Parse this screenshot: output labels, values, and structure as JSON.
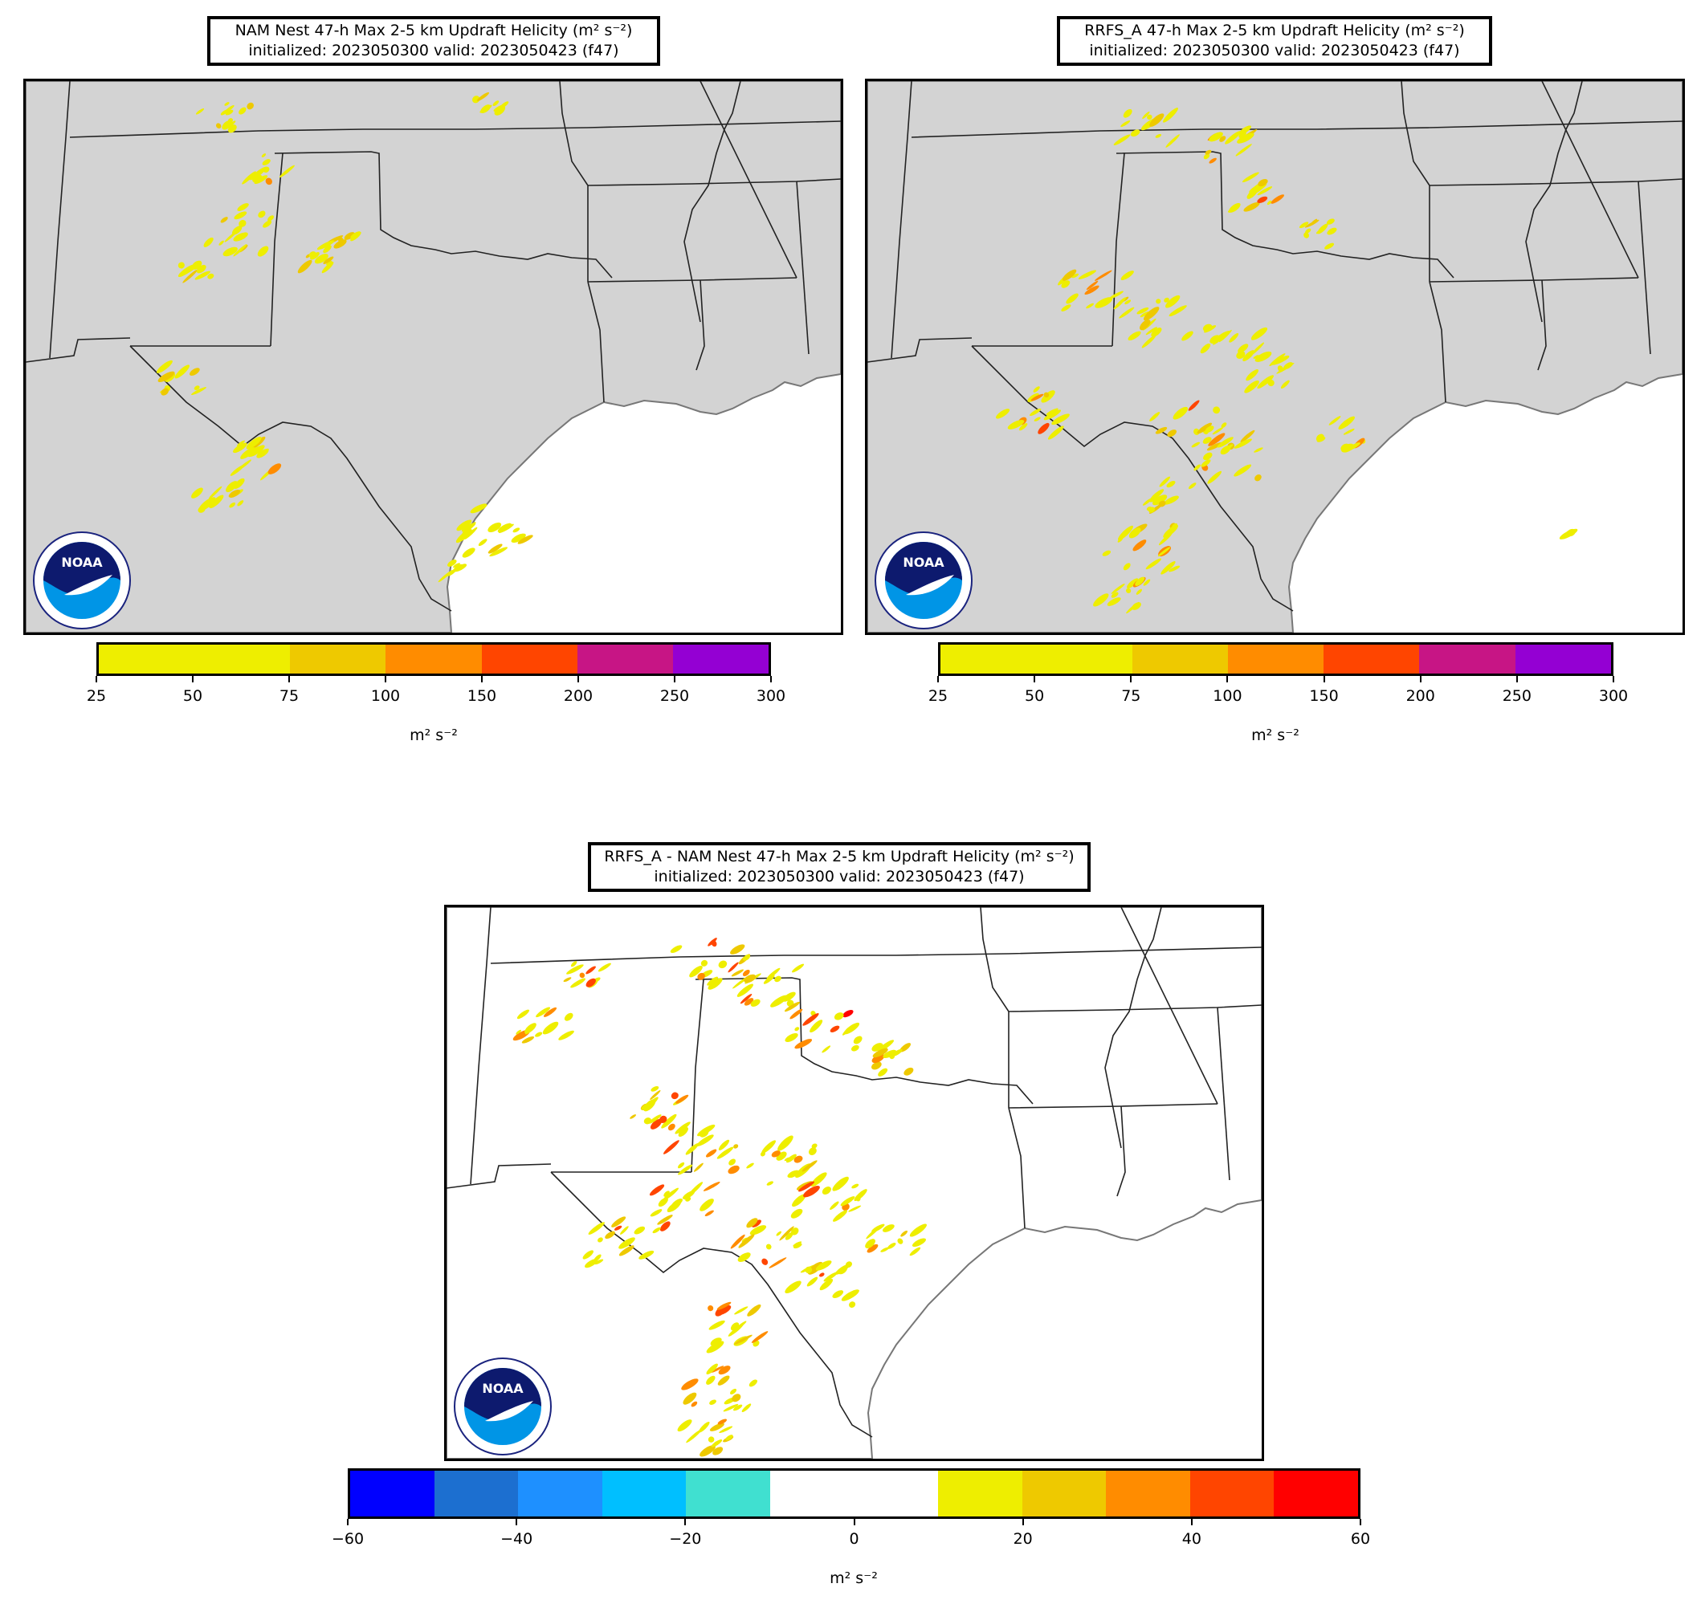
{
  "panels": [
    {
      "id": "nam",
      "title_line1": "NAM Nest 47-h Max 2-5 km Updraft Helicity (m² s⁻²)",
      "title_line2": "initialized: 2023050300 valid: 2023050423 (f47)",
      "colorbar": {
        "ticks": [
          "25",
          "50",
          "75",
          "100",
          "150",
          "200",
          "250",
          "300"
        ],
        "colors": [
          "#eeee00",
          "#eeee00",
          "#eec900",
          "#ff8c00",
          "#ff4500",
          "#c71585",
          "#9400d3"
        ],
        "label": "m² s⁻²"
      },
      "logo_text": "NOAA"
    },
    {
      "id": "rrfs",
      "title_line1": "RRFS_A 47-h Max 2-5 km Updraft Helicity (m² s⁻²)",
      "title_line2": "initialized: 2023050300 valid: 2023050423 (f47)",
      "colorbar": {
        "ticks": [
          "25",
          "50",
          "75",
          "100",
          "150",
          "200",
          "250",
          "300"
        ],
        "colors": [
          "#eeee00",
          "#eeee00",
          "#eec900",
          "#ff8c00",
          "#ff4500",
          "#c71585",
          "#9400d3"
        ],
        "label": "m² s⁻²"
      },
      "logo_text": "NOAA"
    },
    {
      "id": "diff",
      "title_line1": "RRFS_A - NAM Nest 47-h Max 2-5 km Updraft Helicity (m² s⁻²)",
      "title_line2": "initialized: 2023050300 valid: 2023050423 (f47)",
      "colorbar": {
        "ticks": [
          "−60",
          "−40",
          "−20",
          "0",
          "20",
          "40",
          "60"
        ],
        "colors": [
          "#0000ff",
          "#1c6fd0",
          "#1e90ff",
          "#00bfff",
          "#40e0d0",
          "#ffffff",
          "#ffffff",
          "#eeee00",
          "#eec900",
          "#ff8c00",
          "#ff4500",
          "#ff0000"
        ],
        "label": "m² s⁻²"
      },
      "logo_text": "NOAA"
    }
  ],
  "colors": {
    "land_fill": "#d3d3d3",
    "water_fill": "#ffffff",
    "state_border": "#222222",
    "coastline": "#777777"
  }
}
